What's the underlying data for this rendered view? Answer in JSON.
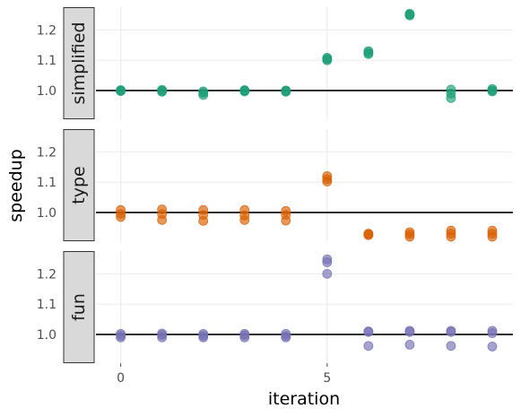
{
  "chart_data": {
    "type": "scatter",
    "xlabel": "iteration",
    "ylabel": "speedup",
    "xlim": [
      -0.6,
      9.5
    ],
    "ylim": [
      0.905,
      1.275
    ],
    "x_ticks": [
      0,
      5
    ],
    "x_tick_labels": [
      "0",
      "5"
    ],
    "y_ticks": [
      1.0,
      1.1,
      1.2
    ],
    "y_tick_labels": [
      "1.0",
      "1.1",
      "1.2"
    ],
    "reference_line": 1.0,
    "grid": true,
    "panels": [
      {
        "label": "simplified",
        "color": "#1b9e77",
        "points": [
          [
            0,
            1.0
          ],
          [
            0,
            0.998
          ],
          [
            0,
            1.001
          ],
          [
            1,
            1.002
          ],
          [
            1,
            0.996
          ],
          [
            1,
            0.999
          ],
          [
            2,
            0.997
          ],
          [
            2,
            0.985
          ],
          [
            2,
            0.992
          ],
          [
            3,
            1.0
          ],
          [
            3,
            0.997
          ],
          [
            3,
            1.001
          ],
          [
            4,
            0.998
          ],
          [
            4,
            0.996
          ],
          [
            4,
            1.0
          ],
          [
            5,
            1.108
          ],
          [
            5,
            1.1
          ],
          [
            5,
            1.104
          ],
          [
            6,
            1.13
          ],
          [
            6,
            1.12
          ],
          [
            6,
            1.125
          ],
          [
            7,
            1.253
          ],
          [
            7,
            1.248
          ],
          [
            7,
            1.251
          ],
          [
            8,
            1.003
          ],
          [
            8,
            0.975
          ],
          [
            8,
            0.99
          ],
          [
            9,
            1.005
          ],
          [
            9,
            0.997
          ],
          [
            9,
            1.0
          ]
        ]
      },
      {
        "label": "type",
        "color": "#d95f02",
        "points": [
          [
            0,
            1.008
          ],
          [
            0,
            0.995
          ],
          [
            0,
            0.985
          ],
          [
            1,
            1.01
          ],
          [
            1,
            0.995
          ],
          [
            1,
            0.975
          ],
          [
            2,
            1.008
          ],
          [
            2,
            0.992
          ],
          [
            2,
            0.972
          ],
          [
            3,
            1.008
          ],
          [
            3,
            0.99
          ],
          [
            3,
            0.975
          ],
          [
            4,
            1.005
          ],
          [
            4,
            0.992
          ],
          [
            4,
            0.973
          ],
          [
            5,
            1.12
          ],
          [
            5,
            1.11
          ],
          [
            5,
            1.102
          ],
          [
            6,
            0.93
          ],
          [
            6,
            0.925
          ],
          [
            6,
            0.928
          ],
          [
            7,
            0.935
          ],
          [
            7,
            0.92
          ],
          [
            7,
            0.928
          ],
          [
            8,
            0.94
          ],
          [
            8,
            0.92
          ],
          [
            8,
            0.93
          ],
          [
            9,
            0.94
          ],
          [
            9,
            0.92
          ],
          [
            9,
            0.93
          ]
        ]
      },
      {
        "label": "fun",
        "color": "#7570b3",
        "points": [
          [
            0,
            1.002
          ],
          [
            0,
            0.99
          ],
          [
            0,
            0.996
          ],
          [
            1,
            1.003
          ],
          [
            1,
            0.99
          ],
          [
            1,
            0.998
          ],
          [
            2,
            1.002
          ],
          [
            2,
            0.99
          ],
          [
            2,
            0.996
          ],
          [
            3,
            1.002
          ],
          [
            3,
            0.99
          ],
          [
            3,
            0.997
          ],
          [
            4,
            1.002
          ],
          [
            4,
            0.99
          ],
          [
            4,
            0.995
          ],
          [
            5,
            1.248
          ],
          [
            5,
            1.238
          ],
          [
            5,
            1.2
          ],
          [
            6,
            1.01
          ],
          [
            6,
            1.008
          ],
          [
            6,
            0.962
          ],
          [
            7,
            1.012
          ],
          [
            7,
            1.008
          ],
          [
            7,
            0.966
          ],
          [
            8,
            1.012
          ],
          [
            8,
            1.008
          ],
          [
            8,
            0.962
          ],
          [
            9,
            1.012
          ],
          [
            9,
            1.004
          ],
          [
            9,
            0.96
          ]
        ]
      }
    ]
  }
}
